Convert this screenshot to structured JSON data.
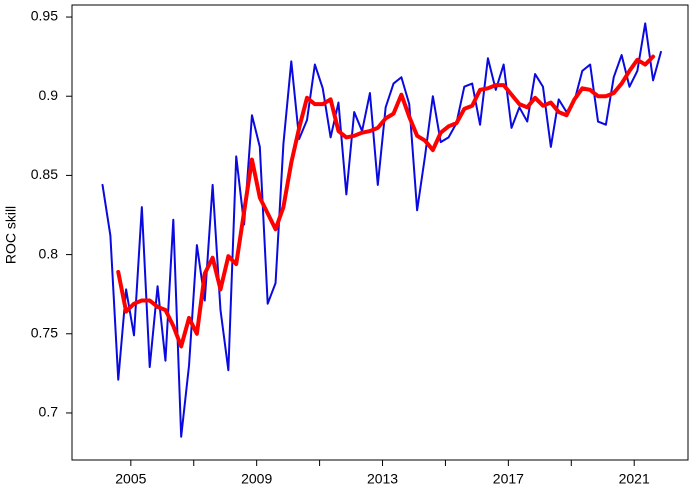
{
  "chart_data": {
    "type": "line",
    "ylabel": "ROC skill",
    "x": [
      2004.1,
      2004.35,
      2004.6,
      2004.85,
      2005.1,
      2005.35,
      2005.6,
      2005.85,
      2006.1,
      2006.35,
      2006.6,
      2006.85,
      2007.1,
      2007.35,
      2007.6,
      2007.85,
      2008.1,
      2008.35,
      2008.6,
      2008.85,
      2009.1,
      2009.35,
      2009.6,
      2009.85,
      2010.1,
      2010.35,
      2010.6,
      2010.85,
      2011.1,
      2011.35,
      2011.6,
      2011.85,
      2012.1,
      2012.35,
      2012.6,
      2012.85,
      2013.1,
      2013.35,
      2013.6,
      2013.85,
      2014.1,
      2014.35,
      2014.6,
      2014.85,
      2015.1,
      2015.35,
      2015.6,
      2015.85,
      2016.1,
      2016.35,
      2016.6,
      2016.85,
      2017.1,
      2017.35,
      2017.6,
      2017.85,
      2018.1,
      2018.35,
      2018.6,
      2018.85,
      2019.1,
      2019.35,
      2019.6,
      2019.85,
      2020.1,
      2020.35,
      2020.6,
      2020.85,
      2021.1,
      2021.35,
      2021.6,
      2021.85
    ],
    "series": [
      {
        "color": "#0a0ae0",
        "values": [
          0.844,
          0.812,
          0.721,
          0.778,
          0.749,
          0.83,
          0.729,
          0.78,
          0.733,
          0.822,
          0.685,
          0.73,
          0.806,
          0.771,
          0.844,
          0.765,
          0.727,
          0.862,
          0.819,
          0.888,
          0.868,
          0.769,
          0.782,
          0.87,
          0.922,
          0.873,
          0.885,
          0.92,
          0.905,
          0.874,
          0.896,
          0.838,
          0.89,
          0.878,
          0.902,
          0.844,
          0.893,
          0.908,
          0.912,
          0.895,
          0.828,
          0.862,
          0.9,
          0.871,
          0.874,
          0.883,
          0.906,
          0.908,
          0.882,
          0.924,
          0.904,
          0.92,
          0.88,
          0.893,
          0.884,
          0.914,
          0.906,
          0.868,
          0.898,
          0.89,
          0.897,
          0.916,
          0.92,
          0.884,
          0.882,
          0.912,
          0.926,
          0.906,
          0.916,
          0.946,
          0.91,
          0.928
        ]
      },
      {
        "color": "#ff0000",
        "values": [
          null,
          null,
          0.789,
          0.764,
          0.769,
          0.771,
          0.771,
          0.767,
          0.765,
          0.755,
          0.742,
          0.76,
          0.75,
          0.788,
          0.798,
          0.778,
          0.799,
          0.794,
          0.827,
          0.86,
          0.836,
          0.826,
          0.816,
          0.83,
          0.858,
          0.88,
          0.899,
          0.895,
          0.895,
          0.898,
          0.878,
          0.874,
          0.875,
          0.877,
          0.878,
          0.88,
          0.886,
          0.889,
          0.901,
          0.887,
          0.875,
          0.872,
          0.866,
          0.877,
          0.881,
          0.883,
          0.892,
          0.894,
          0.904,
          0.905,
          0.907,
          0.907,
          0.901,
          0.895,
          0.893,
          0.899,
          0.894,
          0.896,
          0.89,
          0.888,
          0.898,
          0.905,
          0.904,
          0.9,
          0.9,
          0.902,
          0.908,
          0.916,
          0.923,
          0.92,
          0.925,
          null
        ]
      }
    ],
    "xlim": [
      2003.13,
      2022.71
    ],
    "ylim": [
      0.6703,
      0.9576
    ],
    "xticks": [
      2005,
      2009,
      2013,
      2017,
      2021
    ],
    "xminorticks": [
      2007,
      2011,
      2015,
      2019
    ],
    "yticks": [
      0.7,
      0.75,
      0.8,
      0.85,
      0.9,
      0.95
    ]
  }
}
